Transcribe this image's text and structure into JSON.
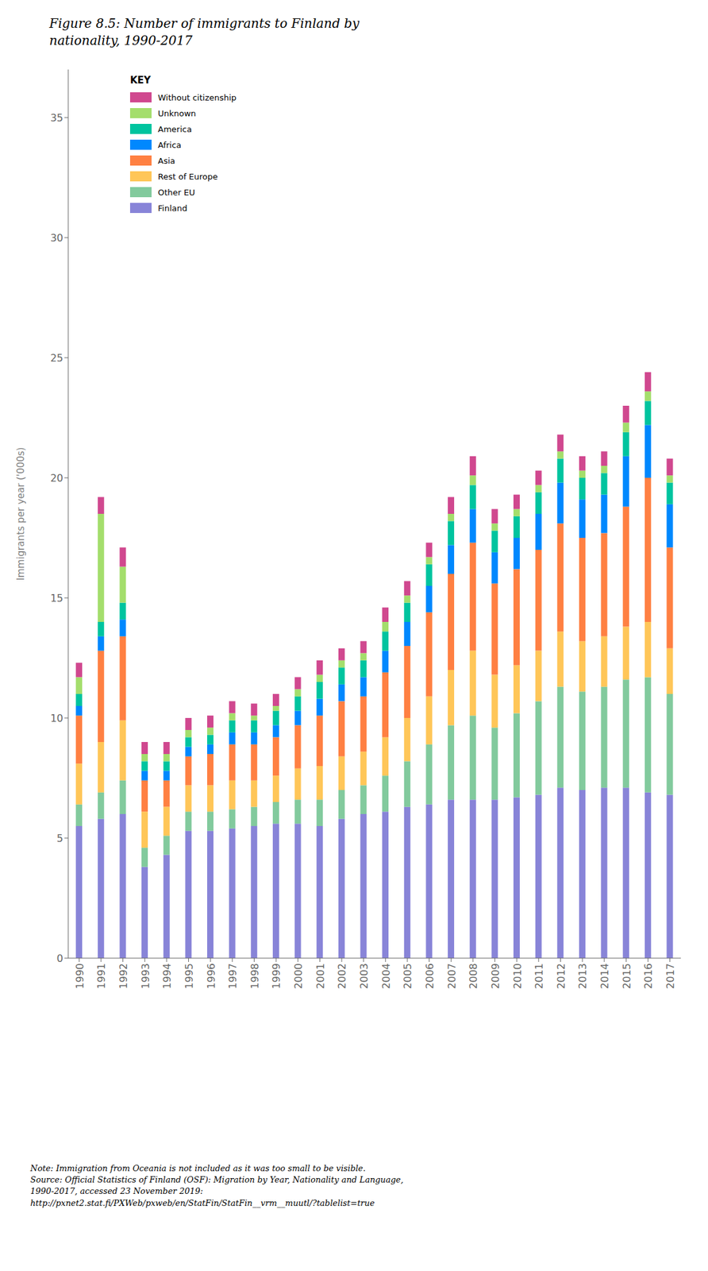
{
  "chart_data": {
    "type": "bar",
    "title": "Figure 8.5: Number of immigrants to Finland by\nnationality, 1990-2017",
    "ylabel": "Immigrants per year ('000s)",
    "note": "Note: Immigration from Oceania is not included as it was too small to be visible.\nSource: Official Statistics of Finland (OSF): Migration by Year, Nationality and Language,\n1990-2017, accessed 23 November 2019:\nhttp://pxnet2.stat.fi/PXWeb/pxweb/en/StatFin/StatFin__vrm__muutl/?tablelist=true",
    "legend_title": "KEY",
    "categories": [
      1990,
      1991,
      1992,
      1993,
      1994,
      1995,
      1996,
      1997,
      1998,
      1999,
      2000,
      2001,
      2002,
      2003,
      2004,
      2005,
      2006,
      2007,
      2008,
      2009,
      2010,
      2011,
      2012,
      2013,
      2014,
      2015,
      2016,
      2017
    ],
    "series": [
      {
        "name": "Finland",
        "values": [
          5.5,
          5.8,
          6.0,
          3.8,
          4.3,
          5.3,
          5.3,
          5.4,
          5.5,
          5.6,
          5.6,
          5.5,
          5.8,
          6.0,
          6.1,
          6.3,
          6.4,
          6.6,
          6.6,
          6.6,
          6.7,
          6.8,
          7.1,
          7.0,
          7.1,
          7.1,
          6.9,
          6.8
        ]
      },
      {
        "name": "Other EU",
        "values": [
          0.9,
          1.1,
          1.4,
          0.8,
          0.8,
          0.8,
          0.8,
          0.8,
          0.8,
          0.9,
          1.0,
          1.1,
          1.2,
          1.2,
          1.5,
          1.9,
          2.5,
          3.1,
          3.5,
          3.0,
          3.5,
          3.9,
          4.2,
          4.1,
          4.2,
          4.5,
          4.8,
          4.2
        ]
      },
      {
        "name": "Rest of Europe",
        "values": [
          1.7,
          2.1,
          2.5,
          1.5,
          1.2,
          1.1,
          1.1,
          1.2,
          1.1,
          1.1,
          1.3,
          1.4,
          1.4,
          1.4,
          1.6,
          1.8,
          2.0,
          2.3,
          2.7,
          2.2,
          2.0,
          2.1,
          2.3,
          2.1,
          2.1,
          2.2,
          2.3,
          1.9
        ]
      },
      {
        "name": "Asia",
        "values": [
          2.0,
          3.8,
          3.5,
          1.3,
          1.1,
          1.2,
          1.3,
          1.5,
          1.5,
          1.6,
          1.8,
          2.1,
          2.3,
          2.3,
          2.7,
          3.0,
          3.5,
          4.0,
          4.5,
          3.8,
          4.0,
          4.2,
          4.5,
          4.3,
          4.3,
          5.0,
          6.0,
          4.2
        ]
      },
      {
        "name": "Africa",
        "values": [
          0.4,
          0.6,
          0.7,
          0.4,
          0.4,
          0.4,
          0.4,
          0.5,
          0.5,
          0.5,
          0.6,
          0.7,
          0.7,
          0.8,
          0.9,
          1.0,
          1.1,
          1.2,
          1.4,
          1.3,
          1.3,
          1.5,
          1.7,
          1.6,
          1.6,
          2.1,
          2.2,
          1.8
        ]
      },
      {
        "name": "America",
        "values": [
          0.5,
          0.6,
          0.7,
          0.4,
          0.4,
          0.4,
          0.4,
          0.5,
          0.5,
          0.6,
          0.6,
          0.7,
          0.7,
          0.7,
          0.8,
          0.8,
          0.9,
          1.0,
          1.0,
          0.9,
          0.9,
          0.9,
          1.0,
          0.9,
          0.9,
          1.0,
          1.0,
          0.9
        ]
      },
      {
        "name": "Unknown",
        "values": [
          0.7,
          4.5,
          1.5,
          0.3,
          0.3,
          0.3,
          0.3,
          0.3,
          0.2,
          0.2,
          0.3,
          0.3,
          0.3,
          0.3,
          0.4,
          0.3,
          0.3,
          0.3,
          0.4,
          0.3,
          0.3,
          0.3,
          0.3,
          0.3,
          0.3,
          0.4,
          0.4,
          0.3
        ]
      },
      {
        "name": "Without citizenship",
        "values": [
          0.6,
          0.7,
          0.8,
          0.5,
          0.5,
          0.5,
          0.5,
          0.5,
          0.5,
          0.5,
          0.5,
          0.6,
          0.5,
          0.5,
          0.6,
          0.6,
          0.6,
          0.7,
          0.8,
          0.6,
          0.6,
          0.6,
          0.7,
          0.6,
          0.6,
          0.7,
          0.8,
          0.7
        ]
      }
    ],
    "stacked": true,
    "ylim": [
      0,
      37
    ],
    "yticks": [
      0,
      5,
      10,
      15,
      20,
      25,
      30,
      35
    ],
    "grid": false,
    "legend": "upper left"
  }
}
